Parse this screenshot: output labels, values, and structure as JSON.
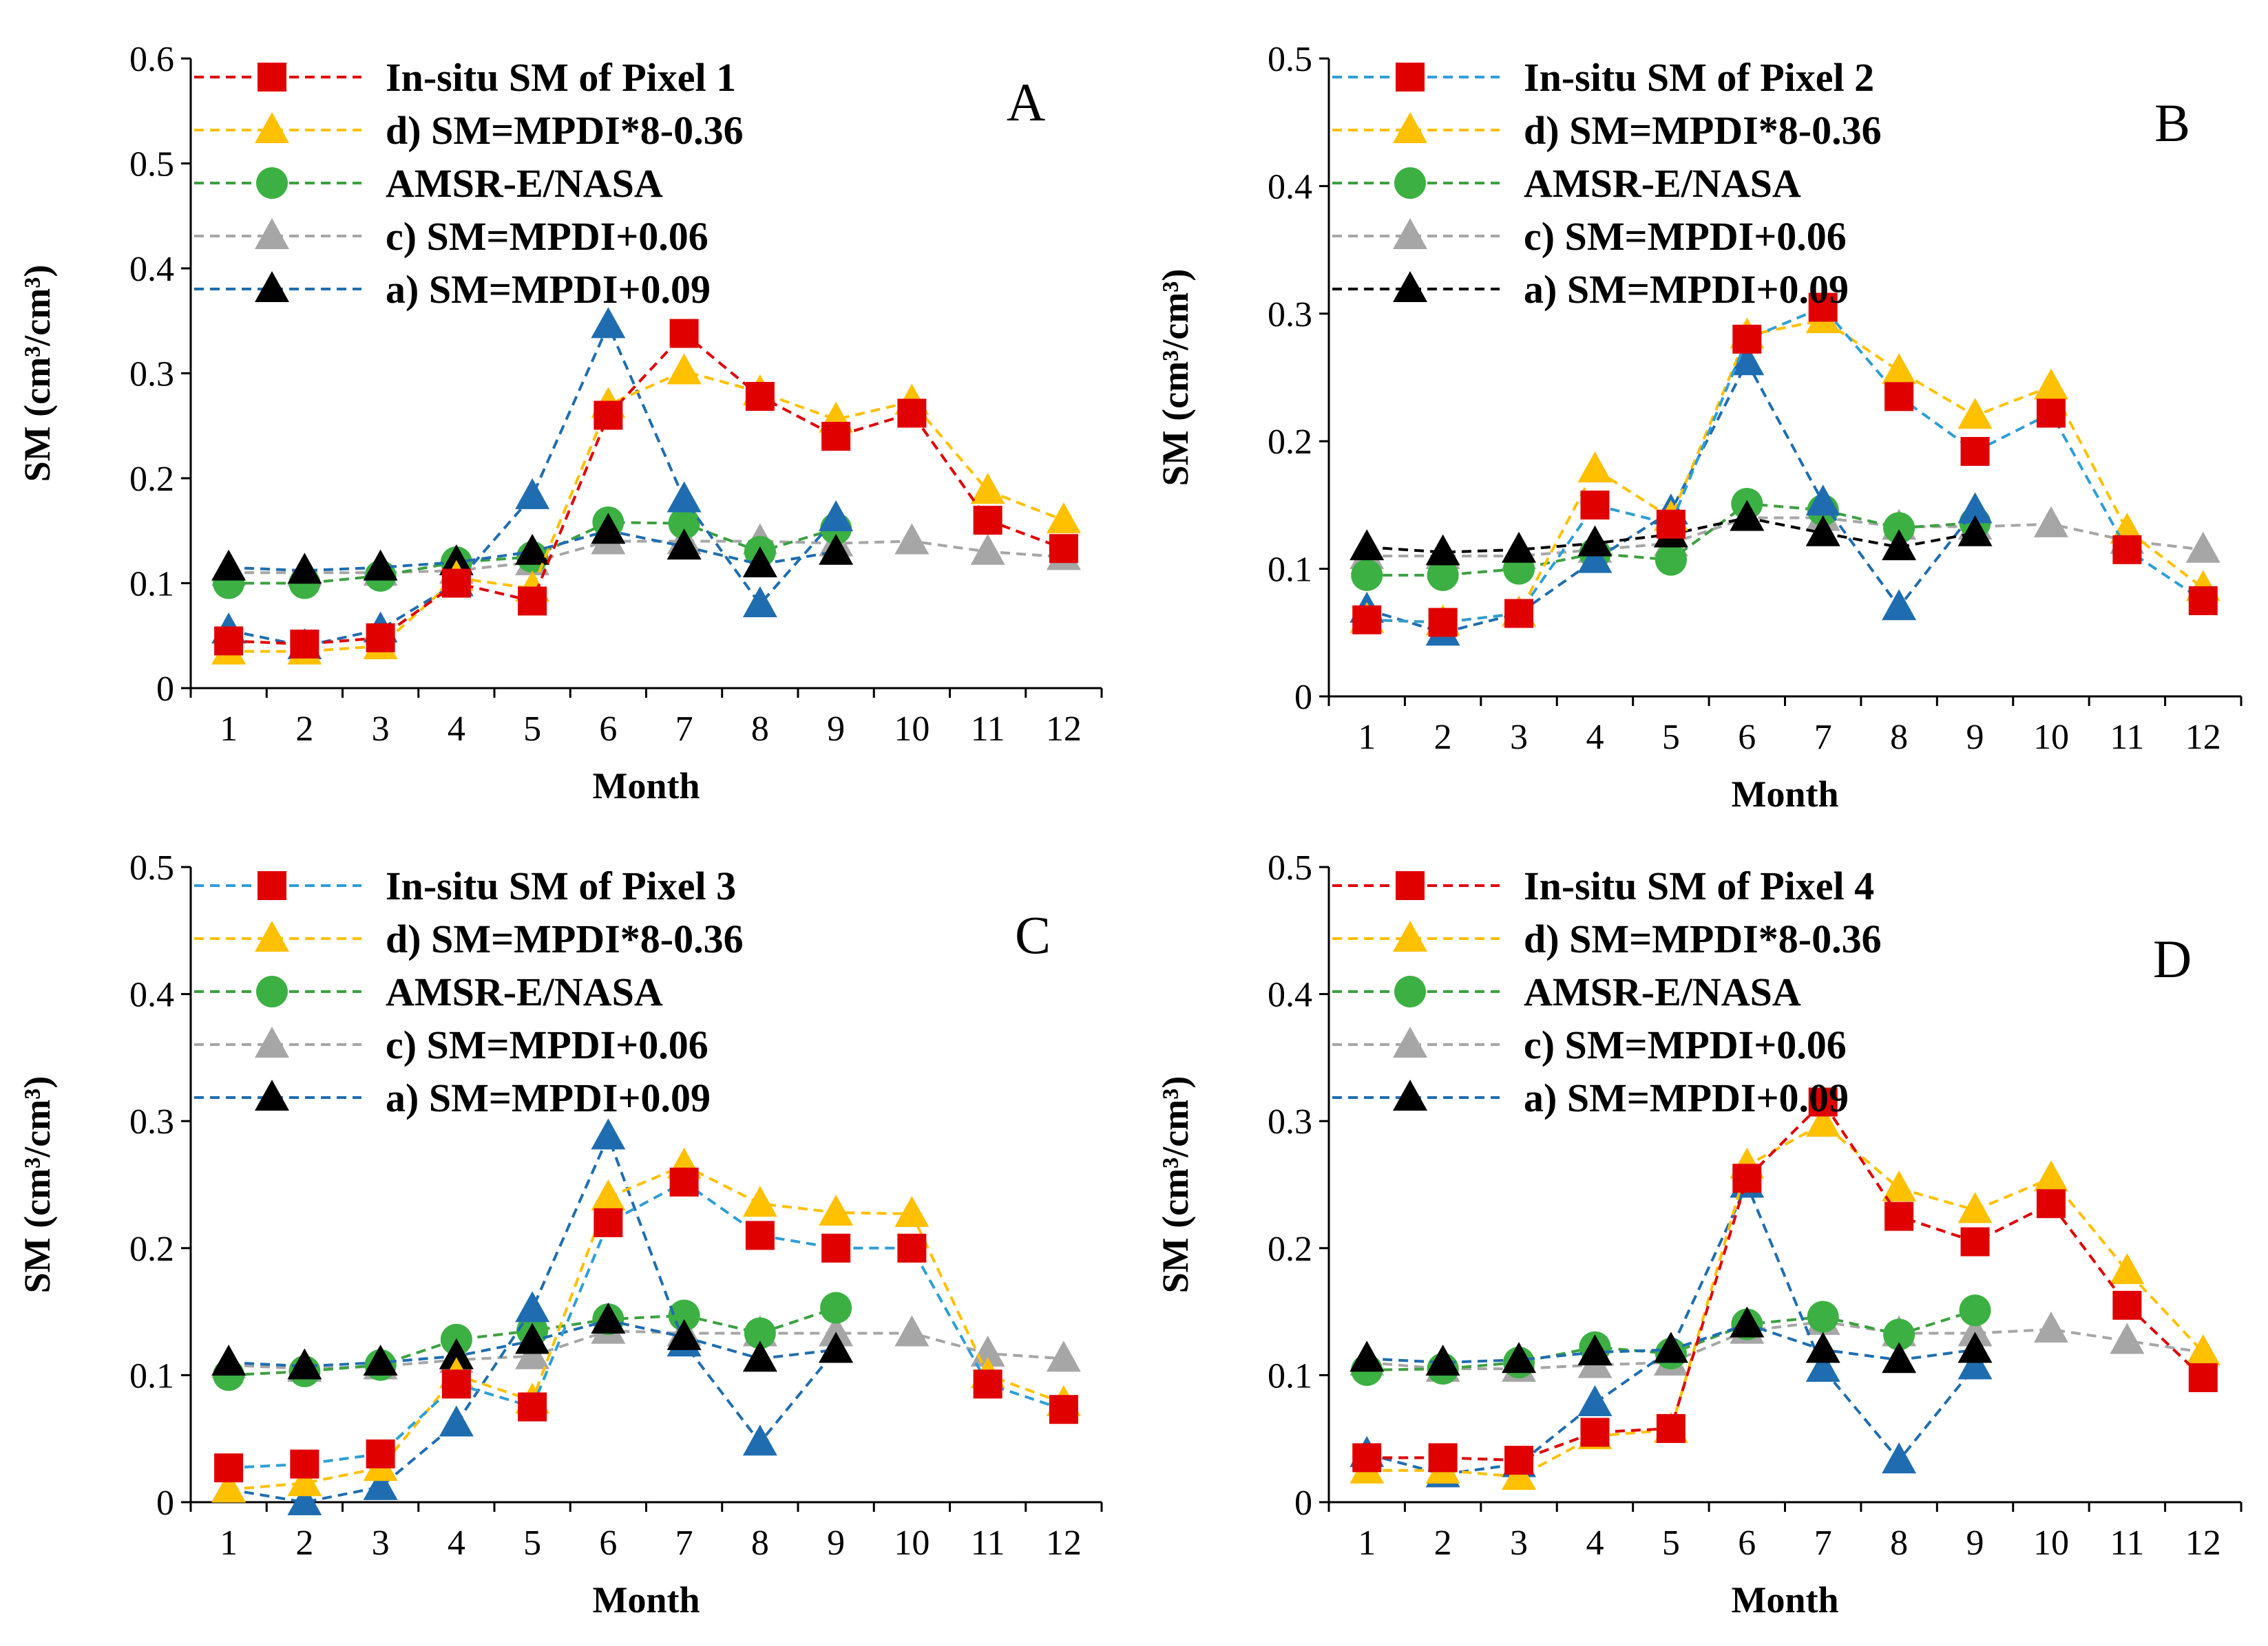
{
  "figure": {
    "y_label": "SM (cm³/cm³)",
    "x_label": "Month"
  },
  "legend_order": [
    "insitu",
    "d",
    "amsr",
    "c",
    "a"
  ],
  "series_styles": {
    "insitu": {
      "marker": "square",
      "fill": "#E00000"
    },
    "d": {
      "marker": "triangle",
      "fill": "#FFC000",
      "line": "#FFC000"
    },
    "amsr": {
      "marker": "circle",
      "fill": "#3CB043",
      "line": "#3CA040"
    },
    "c": {
      "marker": "triangle",
      "fill": "#A6A6A6",
      "line": "#A6A6A6"
    },
    "a": {
      "marker": "triangle",
      "fill": "#000000"
    },
    "a_blue_fill": "#1F6DB0"
  },
  "chart_data": [
    {
      "type": "line",
      "panel": "A",
      "title": "",
      "xlabel": "Month",
      "ylabel": "SM (cm³/cm³)",
      "ylim": [
        0,
        0.6
      ],
      "y_ticks": [
        "0",
        "0.1",
        "0.2",
        "0.3",
        "0.4",
        "0.5",
        "0.6"
      ],
      "categories": [
        "1",
        "2",
        "3",
        "4",
        "5",
        "6",
        "7",
        "8",
        "9",
        "10",
        "11",
        "12"
      ],
      "series": [
        {
          "key": "insitu",
          "name": "In-situ SM of Pixel 1",
          "line_color": "#E00000",
          "values": [
            0.045,
            0.042,
            0.048,
            0.1,
            0.083,
            0.26,
            0.338,
            0.278,
            0.24,
            0.262,
            0.16,
            0.133
          ]
        },
        {
          "key": "d",
          "name": "d) SM=MPDI*8-0.36",
          "line_color": "#FFC000",
          "values": [
            0.035,
            0.035,
            0.04,
            0.105,
            0.095,
            0.27,
            0.302,
            0.282,
            0.256,
            0.273,
            0.188,
            0.16
          ]
        },
        {
          "key": "amsr",
          "name": "AMSR-E/NASA",
          "line_color": "#3CA040",
          "values": [
            0.1,
            0.1,
            0.107,
            0.12,
            0.125,
            0.158,
            0.157,
            0.13,
            0.152,
            null,
            null,
            null
          ]
        },
        {
          "key": "c",
          "name": "c) SM=MPDI+0.06",
          "line_color": "#A6A6A6",
          "values": [
            0.11,
            0.11,
            0.11,
            0.112,
            0.12,
            0.14,
            0.14,
            0.14,
            0.138,
            0.14,
            0.13,
            0.125
          ]
        },
        {
          "key": "a",
          "name": "a) SM=MPDI+0.09",
          "line_color": "#1F6DB0",
          "values": [
            0.115,
            0.112,
            0.115,
            0.12,
            0.13,
            0.15,
            0.135,
            0.118,
            0.13,
            null,
            null,
            null
          ]
        },
        {
          "key": "a_blue",
          "name": "",
          "line_color": "#1F6DB0",
          "values": [
            0.055,
            0.04,
            0.056,
            0.1,
            0.183,
            0.346,
            0.18,
            0.08,
            0.162,
            null,
            null,
            null
          ]
        }
      ]
    },
    {
      "type": "line",
      "panel": "B",
      "title": "",
      "xlabel": "Month",
      "ylabel": "SM (cm³/cm³)",
      "ylim": [
        0,
        0.5
      ],
      "y_ticks": [
        "0",
        "0.1",
        "0.2",
        "0.3",
        "0.4",
        "0.5"
      ],
      "categories": [
        "1",
        "2",
        "3",
        "4",
        "5",
        "6",
        "7",
        "8",
        "9",
        "10",
        "11",
        "12"
      ],
      "series": [
        {
          "key": "insitu",
          "name": "In-situ SM of Pixel 2",
          "line_color": "#2E9ED6",
          "values": [
            0.06,
            0.058,
            0.065,
            0.15,
            0.135,
            0.28,
            0.305,
            0.235,
            0.192,
            0.222,
            0.115,
            0.075
          ]
        },
        {
          "key": "d",
          "name": "d) SM=MPDI*8-0.36",
          "line_color": "#FFC000",
          "values": [
            0.06,
            0.058,
            0.065,
            0.178,
            0.14,
            0.283,
            0.295,
            0.255,
            0.22,
            0.243,
            0.13,
            0.085
          ]
        },
        {
          "key": "amsr",
          "name": "AMSR-E/NASA",
          "line_color": "#3CA040",
          "values": [
            0.095,
            0.095,
            0.1,
            0.112,
            0.107,
            0.151,
            0.146,
            0.132,
            0.136,
            null,
            null,
            null
          ]
        },
        {
          "key": "c",
          "name": "c) SM=MPDI+0.06",
          "line_color": "#A6A6A6",
          "values": [
            0.11,
            0.11,
            0.11,
            0.115,
            0.12,
            0.14,
            0.14,
            0.133,
            0.133,
            0.135,
            0.122,
            0.115
          ]
        },
        {
          "key": "a",
          "name": "a) SM=MPDI+0.09",
          "line_color": "#000000",
          "values": [
            0.117,
            0.113,
            0.115,
            0.12,
            0.127,
            0.14,
            0.128,
            0.117,
            0.128,
            null,
            null,
            null
          ]
        },
        {
          "key": "a_blue",
          "name": "",
          "line_color": "#1F6DB0",
          "values": [
            0.068,
            0.05,
            0.065,
            0.107,
            0.145,
            0.262,
            0.152,
            0.07,
            0.146,
            null,
            null,
            null
          ]
        }
      ]
    },
    {
      "type": "line",
      "panel": "C",
      "title": "",
      "xlabel": "Month",
      "ylabel": "SM (cm³/cm³)",
      "ylim": [
        0,
        0.5
      ],
      "y_ticks": [
        "0",
        "0.1",
        "0.2",
        "0.3",
        "0.4",
        "0.5"
      ],
      "categories": [
        "1",
        "2",
        "3",
        "4",
        "5",
        "6",
        "7",
        "8",
        "9",
        "10",
        "11",
        "12"
      ],
      "series": [
        {
          "key": "insitu",
          "name": "In-situ SM of Pixel 3",
          "line_color": "#2E9ED6",
          "values": [
            0.027,
            0.03,
            0.038,
            0.093,
            0.075,
            0.22,
            0.252,
            0.21,
            0.2,
            0.2,
            0.093,
            0.073
          ]
        },
        {
          "key": "d",
          "name": "d) SM=MPDI*8-0.36",
          "line_color": "#FFC000",
          "values": [
            0.01,
            0.015,
            0.027,
            0.1,
            0.08,
            0.24,
            0.265,
            0.235,
            0.228,
            0.227,
            0.1,
            0.078
          ]
        },
        {
          "key": "amsr",
          "name": "AMSR-E/NASA",
          "line_color": "#3CA040",
          "values": [
            0.1,
            0.103,
            0.108,
            0.128,
            0.135,
            0.144,
            0.147,
            0.133,
            0.153,
            null,
            null,
            null
          ]
        },
        {
          "key": "c",
          "name": "c) SM=MPDI+0.06",
          "line_color": "#A6A6A6",
          "values": [
            0.108,
            0.105,
            0.107,
            0.112,
            0.115,
            0.135,
            0.133,
            0.133,
            0.133,
            0.133,
            0.117,
            0.113
          ]
        },
        {
          "key": "a",
          "name": "a) SM=MPDI+0.09",
          "line_color": "#1F6DB0",
          "values": [
            0.11,
            0.107,
            0.11,
            0.115,
            0.127,
            0.143,
            0.13,
            0.113,
            0.12,
            null,
            null,
            null
          ]
        },
        {
          "key": "a_blue",
          "name": "",
          "line_color": "#1F6DB0",
          "values": [
            0.01,
            0.0,
            0.012,
            0.062,
            0.152,
            0.288,
            0.125,
            0.047,
            0.12,
            null,
            null,
            null
          ]
        }
      ]
    },
    {
      "type": "line",
      "panel": "D",
      "title": "",
      "xlabel": "Month",
      "ylabel": "SM (cm³/cm³)",
      "ylim": [
        0,
        0.5
      ],
      "y_ticks": [
        "0",
        "0.1",
        "0.2",
        "0.3",
        "0.4",
        "0.5"
      ],
      "categories": [
        "1",
        "2",
        "3",
        "4",
        "5",
        "6",
        "7",
        "8",
        "9",
        "10",
        "11",
        "12"
      ],
      "series": [
        {
          "key": "insitu",
          "name": "In-situ SM of Pixel 4",
          "line_color": "#E00000",
          "values": [
            0.035,
            0.035,
            0.033,
            0.055,
            0.058,
            0.255,
            0.315,
            0.225,
            0.205,
            0.235,
            0.155,
            0.098
          ]
        },
        {
          "key": "d",
          "name": "d) SM=MPDI*8-0.36",
          "line_color": "#FFC000",
          "values": [
            0.025,
            0.025,
            0.02,
            0.052,
            0.057,
            0.265,
            0.298,
            0.247,
            0.23,
            0.255,
            0.182,
            0.118
          ]
        },
        {
          "key": "amsr",
          "name": "AMSR-E/NASA",
          "line_color": "#3CA040",
          "values": [
            0.104,
            0.105,
            0.11,
            0.122,
            0.117,
            0.14,
            0.146,
            0.132,
            0.151,
            null,
            null,
            null
          ]
        },
        {
          "key": "c",
          "name": "c) SM=MPDI+0.06",
          "line_color": "#A6A6A6",
          "values": [
            0.11,
            0.105,
            0.105,
            0.108,
            0.11,
            0.135,
            0.142,
            0.133,
            0.133,
            0.136,
            0.127,
            0.118
          ]
        },
        {
          "key": "a",
          "name": "a) SM=MPDI+0.09",
          "line_color": "#1F6DB0",
          "values": [
            0.113,
            0.11,
            0.112,
            0.118,
            0.12,
            0.14,
            0.12,
            0.112,
            0.12,
            null,
            null,
            null
          ]
        },
        {
          "key": "a_blue",
          "name": "",
          "line_color": "#1F6DB0",
          "values": [
            0.038,
            0.022,
            0.03,
            0.078,
            0.12,
            0.25,
            0.105,
            0.033,
            0.107,
            null,
            null,
            null
          ]
        }
      ]
    }
  ]
}
